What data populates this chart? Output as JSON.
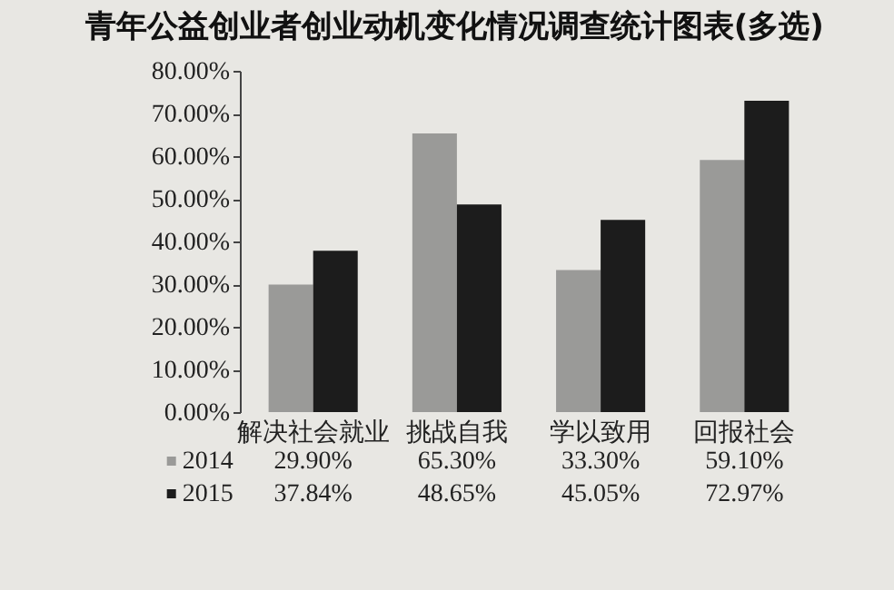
{
  "chart_data": {
    "type": "bar",
    "title": "青年公益创业者创业动机变化情况调查统计图表(多选)",
    "categories": [
      "解决社会就业",
      "挑战自我",
      "学以致用",
      "回报社会"
    ],
    "series": [
      {
        "name": "2014",
        "color": "#9a9a98",
        "values": [
          29.9,
          65.3,
          33.3,
          59.1
        ],
        "value_labels": [
          "29.90%",
          "65.30%",
          "33.30%",
          "59.10%"
        ]
      },
      {
        "name": "2015",
        "color": "#1c1c1c",
        "values": [
          37.84,
          48.65,
          45.05,
          72.97
        ],
        "value_labels": [
          "37.84%",
          "48.65%",
          "45.05%",
          "72.97%"
        ]
      }
    ],
    "ylim": [
      0,
      80
    ],
    "yticks": [
      {
        "value": 0,
        "label": "0.00%"
      },
      {
        "value": 10,
        "label": "10.00%"
      },
      {
        "value": 20,
        "label": "20.00%"
      },
      {
        "value": 30,
        "label": "30.00%"
      },
      {
        "value": 40,
        "label": "40.00%"
      },
      {
        "value": 50,
        "label": "50.00%"
      },
      {
        "value": 60,
        "label": "60.00%"
      },
      {
        "value": 70,
        "label": "70.00%"
      },
      {
        "value": 80,
        "label": "80.00%"
      }
    ],
    "grid": false,
    "legend": "bottom left"
  }
}
